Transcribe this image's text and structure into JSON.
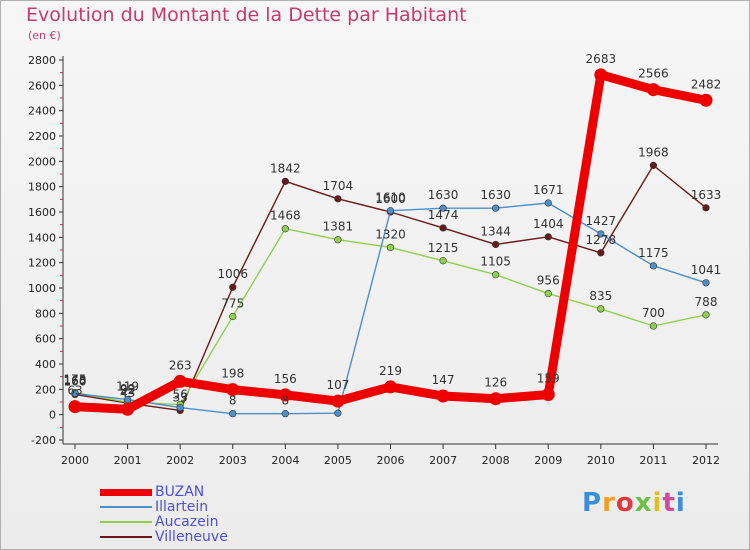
{
  "title": "Evolution du Montant de la Dette par Habitant",
  "subtitle": "(en €)",
  "brand": "Proxiti",
  "chart_data": {
    "type": "line",
    "x": [
      "2000",
      "2001",
      "2002",
      "2003",
      "2004",
      "2005",
      "2006",
      "2007",
      "2008",
      "2009",
      "2010",
      "2011",
      "2012"
    ],
    "ylim": [
      -200,
      2800
    ],
    "yticks": [
      -200,
      0,
      200,
      400,
      600,
      800,
      1000,
      1200,
      1400,
      1600,
      1800,
      2000,
      2200,
      2400,
      2600,
      2800
    ],
    "grid": false,
    "legend": "bottom-left",
    "series": [
      {
        "name": "BUZAN",
        "color": "#ee0000",
        "values": [
          63,
          43,
          263,
          198,
          156,
          107,
          219,
          147,
          126,
          159,
          2683,
          2566,
          2482
        ],
        "labels": [
          "63",
          "43",
          "263",
          "198",
          "156",
          "107",
          "219",
          "147",
          "126",
          "159",
          "2683",
          "2566",
          "2482"
        ]
      },
      {
        "name": "Illartein",
        "color": "#4d8fcb",
        "values": [
          168,
          119,
          56,
          8,
          8,
          12,
          1610,
          1630,
          1630,
          1671,
          1427,
          1175,
          1041
        ],
        "labels": [
          "168",
          "119",
          "56",
          "8",
          "8",
          "",
          "1610",
          "1630",
          "1630",
          "1671",
          "1427",
          "1175",
          "1041"
        ]
      },
      {
        "name": "Aucazein",
        "color": "#8fd14f",
        "values": [
          175,
          99,
          80,
          775,
          1468,
          1381,
          1320,
          1215,
          1105,
          956,
          835,
          700,
          788
        ],
        "labels": [
          "175",
          "99",
          "",
          "775",
          "1468",
          "1381",
          "1320",
          "1215",
          "1105",
          "956",
          "835",
          "700",
          "788"
        ]
      },
      {
        "name": "Villeneuve",
        "color": "#6b1a1a",
        "values": [
          160,
          92,
          33,
          1006,
          1842,
          1704,
          1600,
          1474,
          1344,
          1404,
          1278,
          1968,
          1633
        ],
        "labels": [
          "160",
          "92",
          "33",
          "1006",
          "1842",
          "1704",
          "1600",
          "1474",
          "1344",
          "1404",
          "1278",
          "1968",
          "1633"
        ]
      }
    ]
  }
}
